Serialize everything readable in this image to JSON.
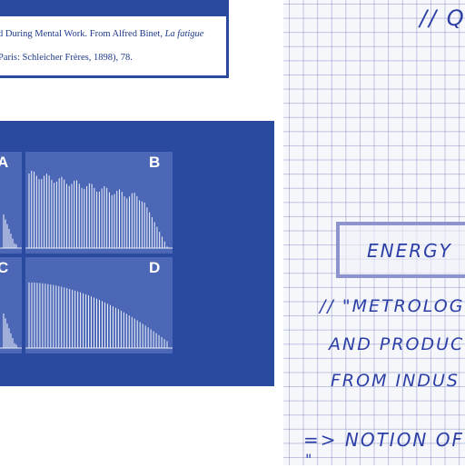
{
  "caption": {
    "line1": "d During Mental Work. From Alfred Binet, ",
    "line1_italic": "La fatigue",
    "line2": "Paris: Schleicher Frères, 1898), 78."
  },
  "figure": {
    "panels": [
      {
        "label": "A"
      },
      {
        "label": "B"
      },
      {
        "label": "C"
      },
      {
        "label": "D"
      }
    ]
  },
  "notes": {
    "line_top": "// Q",
    "energy": "ENERGY",
    "line1": "// \"METROLOG",
    "line2": "AND PRODUC",
    "line3": "FROM INDUS",
    "line4": "=> NOTION OF",
    "line5": "\""
  },
  "colors": {
    "panel_blue": "#2a4aa0",
    "ink_blue": "#2c3fa6",
    "grid": "#7882be"
  }
}
